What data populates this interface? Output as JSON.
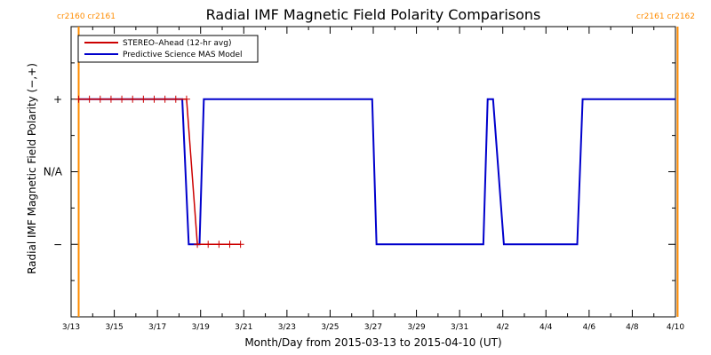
{
  "chart_data": {
    "type": "line",
    "title": "Radial IMF Magnetic Field Polarity Comparisons",
    "xlabel": "Month/Day from 2015-03-13 to 2015-04-10 (UT)",
    "ylabel": "Radial IMF Magnetic Field Polarity (−,+)",
    "xlim": [
      0,
      28
    ],
    "ylim": [
      -2,
      2
    ],
    "x_ticks": [
      {
        "x": 0,
        "label": "3/13"
      },
      {
        "x": 2,
        "label": "3/15"
      },
      {
        "x": 4,
        "label": "3/17"
      },
      {
        "x": 6,
        "label": "3/19"
      },
      {
        "x": 8,
        "label": "3/21"
      },
      {
        "x": 10,
        "label": "3/23"
      },
      {
        "x": 12,
        "label": "3/25"
      },
      {
        "x": 14,
        "label": "3/27"
      },
      {
        "x": 16,
        "label": "3/29"
      },
      {
        "x": 18,
        "label": "3/31"
      },
      {
        "x": 20,
        "label": "4/2"
      },
      {
        "x": 22,
        "label": "4/4"
      },
      {
        "x": 24,
        "label": "4/6"
      },
      {
        "x": 26,
        "label": "4/8"
      },
      {
        "x": 28,
        "label": "4/10"
      }
    ],
    "y_ticks": [
      {
        "y": 1,
        "label": "+"
      },
      {
        "y": 0,
        "label": "N/A"
      },
      {
        "y": -1,
        "label": "−"
      }
    ],
    "series": [
      {
        "name": "STEREO–Ahead (12-hr avg)",
        "color": "#cc0000",
        "marker": "plus",
        "x": [
          0.35,
          0.85,
          1.35,
          1.85,
          2.35,
          2.85,
          3.35,
          3.85,
          4.35,
          4.85,
          5.35,
          5.85,
          6.35,
          6.85,
          7.35,
          7.85
        ],
        "y": [
          1,
          1,
          1,
          1,
          1,
          1,
          1,
          1,
          1,
          1,
          1,
          -1,
          -1,
          -1,
          -1,
          -1
        ]
      },
      {
        "name": "Predictive Science MAS Model",
        "color": "#0000cc",
        "marker": "none",
        "x": [
          0.35,
          5.15,
          5.45,
          5.8,
          5.95,
          6.15,
          13.95,
          14.15,
          19.1,
          19.3,
          19.55,
          20.05,
          20.25,
          23.45,
          23.7,
          28.0
        ],
        "y": [
          1,
          1,
          -1,
          -1,
          -1,
          1,
          1,
          -1,
          -1,
          1,
          1,
          -1,
          -1,
          -1,
          1,
          1
        ]
      }
    ],
    "vertical_markers": [
      {
        "x": 0.35,
        "label": "cr2160 cr2161",
        "color": "#ff8c00"
      },
      {
        "x": 28.1,
        "label": "cr2161 cr2162",
        "color": "#ff8c00"
      }
    ],
    "legend_position": "top-left",
    "grid": false
  }
}
